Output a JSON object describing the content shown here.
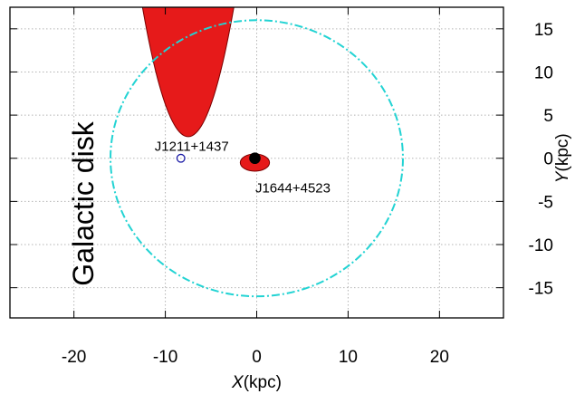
{
  "chart_data": {
    "type": "scatter",
    "xlabel": {
      "var": "X",
      "unit": "(kpc)"
    },
    "ylabel": {
      "var": "Y",
      "unit": "(kpc)"
    },
    "xlim": [
      -27,
      27
    ],
    "ylim": [
      -18.5,
      17.5
    ],
    "x_ticks": [
      -20,
      -10,
      0,
      10,
      20
    ],
    "y_ticks": [
      15,
      10,
      5,
      0,
      -5,
      -10,
      -15
    ],
    "grid": true,
    "disk_circle": {
      "center": [
        0,
        0
      ],
      "radius": 16,
      "color": "#22d3d3",
      "style": "dash-dot"
    },
    "parabola_region": {
      "vertex": [
        -7.5,
        2.5
      ],
      "a": 0.6,
      "x_range": [
        -14.2,
        -2.3
      ],
      "fill": "#e61a1a"
    },
    "ellipse_region": {
      "center": [
        -0.2,
        -0.5
      ],
      "rx": 1.6,
      "ry": 1.0,
      "fill": "#e61a1a"
    },
    "sources": [
      {
        "name": "J1211+1437",
        "x": -8.3,
        "y": 0,
        "marker": "open-circle",
        "color": "#1a1aa6"
      },
      {
        "name": "J1644+4523",
        "x": -0.2,
        "y": 0,
        "marker": "filled-circle",
        "color": "#000000"
      }
    ],
    "annotations": [
      {
        "text": "Galactic disk",
        "orientation": "vertical"
      }
    ]
  }
}
